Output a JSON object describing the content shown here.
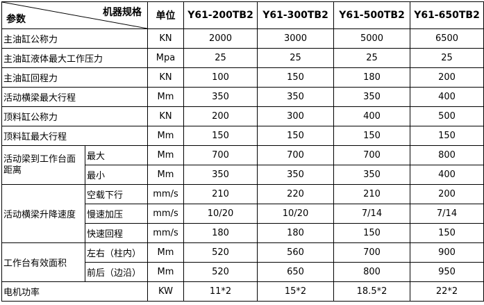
{
  "header": {
    "corner_top": "机器规格",
    "corner_bottom": "参数",
    "unit": "单位",
    "models": [
      "Y61-200TB2",
      "Y61-300TB2",
      "Y61-500TB2",
      "Y61-650TB2"
    ]
  },
  "rows": [
    {
      "param": "主油缸公称力",
      "unit": "KN",
      "values": [
        "2000",
        "3000",
        "5000",
        "6500"
      ]
    },
    {
      "param": "主油缸液体最大工作压力",
      "unit": "Mpa",
      "values": [
        "25",
        "25",
        "25",
        "25"
      ]
    },
    {
      "param": "主油缸回程力",
      "unit": "KN",
      "values": [
        "100",
        "150",
        "180",
        "200"
      ]
    },
    {
      "param": "活动横梁最大行程",
      "unit": "Mm",
      "values": [
        "350",
        "350",
        "350",
        "400"
      ]
    },
    {
      "param": "顶料缸公称力",
      "unit": "KN",
      "values": [
        "200",
        "300",
        "400",
        "500"
      ]
    },
    {
      "param": "顶料缸最大行程",
      "unit": "Mm",
      "values": [
        "150",
        "150",
        "150",
        "150"
      ]
    }
  ],
  "groups": [
    {
      "param": "活动梁到工作台面距离",
      "subs": [
        {
          "sub": "最大",
          "unit": "Mm",
          "values": [
            "700",
            "700",
            "700",
            "800"
          ]
        },
        {
          "sub": "最小",
          "unit": "Mm",
          "values": [
            "350",
            "350",
            "350",
            "400"
          ]
        }
      ]
    },
    {
      "param": "活动横梁升降速度",
      "subs": [
        {
          "sub": "空载下行",
          "unit": "mm/s",
          "values": [
            "210",
            "220",
            "210",
            "200"
          ]
        },
        {
          "sub": "慢速加压",
          "unit": "mm/s",
          "values": [
            "10/20",
            "10/20",
            "7/14",
            "7/14"
          ]
        },
        {
          "sub": "快速回程",
          "unit": "mm/s",
          "values": [
            "180",
            "180",
            "150",
            "150"
          ]
        }
      ]
    },
    {
      "param": "工作台有效面积",
      "subs": [
        {
          "sub": "左右（柱内）",
          "unit": "Mm",
          "values": [
            "520",
            "560",
            "700",
            "900"
          ]
        },
        {
          "sub": "前后（边沿）",
          "unit": "Mm",
          "values": [
            "520",
            "650",
            "800",
            "950"
          ]
        }
      ]
    }
  ],
  "last_row": {
    "param": "电机功率",
    "unit": "KW",
    "values": [
      "11*2",
      "15*2",
      "18.5*2",
      "22*2"
    ]
  }
}
